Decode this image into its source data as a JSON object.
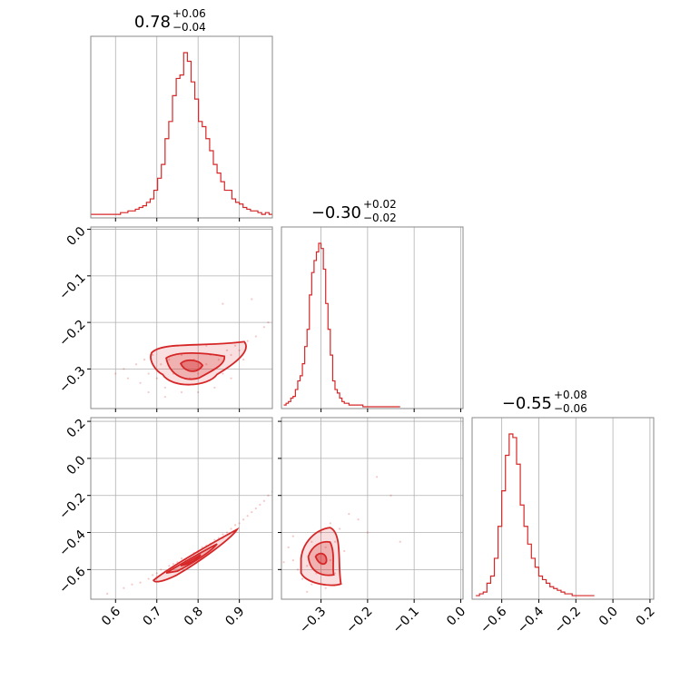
{
  "chart_data": {
    "type": "corner",
    "color": "#d62728",
    "grid": true,
    "parameters": [
      {
        "median": 0.78,
        "plus": 0.06,
        "minus": 0.04,
        "range": [
          0.54,
          0.98
        ],
        "ticks": [
          0.6,
          0.7,
          0.8,
          0.9
        ],
        "tick_labels": [
          "0.6",
          "0.7",
          "0.8",
          "0.9"
        ],
        "title_main": "0.78",
        "title_sup": "+0.06",
        "title_sub": "−0.04"
      },
      {
        "median": -0.3,
        "plus": 0.02,
        "minus": 0.02,
        "range": [
          -0.385,
          0.005
        ],
        "ticks": [
          -0.3,
          -0.2,
          -0.1,
          0.0
        ],
        "tick_labels": [
          "−0.3",
          "−0.2",
          "−0.1",
          "0.0"
        ],
        "title_main": "−0.30",
        "title_sup": "+0.02",
        "title_sub": "−0.02"
      },
      {
        "median": -0.55,
        "plus": 0.08,
        "minus": 0.06,
        "range": [
          -0.76,
          0.22
        ],
        "ticks": [
          -0.6,
          -0.4,
          -0.2,
          0.0,
          0.2
        ],
        "tick_labels": [
          "−0.6",
          "−0.4",
          "−0.2",
          "0.0",
          "0.2"
        ],
        "title_main": "−0.55",
        "title_sup": "+0.08",
        "title_sub": "−0.06"
      }
    ],
    "y_axis_ticks": {
      "row1": {
        "ticks": [
          0.0,
          -0.1,
          -0.2,
          -0.3
        ],
        "tick_labels": [
          "0.0",
          "−0.1",
          "−0.2",
          "−0.3"
        ]
      },
      "row2": {
        "ticks": [
          0.2,
          0.0,
          -0.2,
          -0.4,
          -0.6
        ],
        "tick_labels": [
          "0.2",
          "0.0",
          "−0.2",
          "−0.4",
          "−0.6"
        ]
      }
    },
    "histograms": [
      {
        "param": 0,
        "bins": [
          0.54,
          0.549,
          0.558,
          0.567,
          0.576,
          0.585,
          0.594,
          0.603,
          0.612,
          0.621,
          0.63,
          0.639,
          0.648,
          0.657,
          0.666,
          0.675,
          0.684,
          0.693,
          0.702,
          0.711,
          0.72,
          0.729,
          0.738,
          0.747,
          0.756,
          0.765,
          0.774,
          0.783,
          0.792,
          0.801,
          0.81,
          0.819,
          0.828,
          0.837,
          0.846,
          0.855,
          0.864,
          0.873,
          0.882,
          0.891,
          0.9,
          0.909,
          0.918,
          0.927,
          0.936,
          0.945,
          0.954,
          0.963,
          0.972,
          0.981
        ],
        "counts": [
          1,
          1,
          1,
          1,
          1,
          1,
          1,
          1,
          2,
          2,
          3,
          3,
          4,
          5,
          6,
          8,
          10,
          15,
          22,
          30,
          45,
          55,
          70,
          80,
          82,
          95,
          90,
          78,
          68,
          55,
          52,
          45,
          38,
          30,
          25,
          20,
          15,
          15,
          10,
          8,
          7,
          5,
          4,
          3,
          3,
          2,
          1,
          2,
          1
        ]
      },
      {
        "param": 1,
        "bins": [
          -0.38,
          -0.375,
          -0.37,
          -0.365,
          -0.36,
          -0.355,
          -0.35,
          -0.345,
          -0.34,
          -0.335,
          -0.33,
          -0.325,
          -0.32,
          -0.315,
          -0.31,
          -0.305,
          -0.3,
          -0.295,
          -0.29,
          -0.285,
          -0.28,
          -0.275,
          -0.27,
          -0.265,
          -0.26,
          -0.255,
          -0.25,
          -0.245,
          -0.24,
          -0.235,
          -0.23,
          -0.225,
          -0.22,
          -0.215,
          -0.21,
          -0.205,
          -0.2,
          -0.195,
          -0.19,
          -0.185,
          -0.18,
          -0.175,
          -0.17,
          -0.165,
          -0.16,
          -0.155,
          -0.15,
          -0.145,
          -0.14,
          -0.135,
          -0.13
        ],
        "counts": [
          1,
          2,
          3,
          5,
          6,
          10,
          15,
          18,
          25,
          35,
          45,
          65,
          78,
          85,
          90,
          95,
          92,
          80,
          60,
          45,
          30,
          15,
          10,
          8,
          5,
          3,
          2,
          2,
          1,
          1,
          1,
          1,
          1,
          1,
          0,
          0,
          0,
          0,
          0,
          0,
          0,
          0,
          0,
          0,
          0,
          0,
          0,
          0,
          0,
          0
        ]
      },
      {
        "param": 2,
        "bins": [
          -0.74,
          -0.72,
          -0.7,
          -0.68,
          -0.66,
          -0.64,
          -0.62,
          -0.6,
          -0.58,
          -0.56,
          -0.54,
          -0.52,
          -0.5,
          -0.48,
          -0.46,
          -0.44,
          -0.42,
          -0.4,
          -0.38,
          -0.36,
          -0.34,
          -0.32,
          -0.3,
          -0.28,
          -0.26,
          -0.24,
          -0.22,
          -0.2,
          -0.18,
          -0.16,
          -0.14,
          -0.12,
          -0.1
        ],
        "counts": [
          1,
          2,
          3,
          8,
          12,
          22,
          40,
          60,
          80,
          92,
          90,
          75,
          52,
          40,
          30,
          22,
          17,
          12,
          10,
          8,
          6,
          5,
          4,
          3,
          2,
          2,
          1,
          1,
          1,
          1,
          1,
          1
        ]
      }
    ],
    "scatter_panels": [
      {
        "x_param": 0,
        "y_param": 1,
        "center": [
          0.78,
          -0.3
        ],
        "points": [
          [
            0.62,
            -0.3
          ],
          [
            0.65,
            -0.29
          ],
          [
            0.66,
            -0.33
          ],
          [
            0.67,
            -0.28
          ],
          [
            0.68,
            -0.31
          ],
          [
            0.69,
            -0.27
          ],
          [
            0.7,
            -0.32
          ],
          [
            0.71,
            -0.29
          ],
          [
            0.72,
            -0.34
          ],
          [
            0.73,
            -0.28
          ],
          [
            0.74,
            -0.31
          ],
          [
            0.75,
            -0.33
          ],
          [
            0.76,
            -0.27
          ],
          [
            0.77,
            -0.3
          ],
          [
            0.78,
            -0.32
          ],
          [
            0.79,
            -0.28
          ],
          [
            0.8,
            -0.31
          ],
          [
            0.81,
            -0.33
          ],
          [
            0.82,
            -0.29
          ],
          [
            0.83,
            -0.27
          ],
          [
            0.84,
            -0.3
          ],
          [
            0.85,
            -0.28
          ],
          [
            0.86,
            -0.31
          ],
          [
            0.87,
            -0.26
          ],
          [
            0.88,
            -0.27
          ],
          [
            0.89,
            -0.25
          ],
          [
            0.9,
            -0.26
          ],
          [
            0.92,
            -0.24
          ],
          [
            0.94,
            -0.23
          ],
          [
            0.96,
            -0.21
          ],
          [
            0.97,
            -0.2
          ],
          [
            0.68,
            -0.35
          ],
          [
            0.72,
            -0.36
          ],
          [
            0.76,
            -0.35
          ],
          [
            0.8,
            -0.35
          ],
          [
            0.84,
            -0.34
          ],
          [
            0.63,
            -0.32
          ],
          [
            0.88,
            -0.32
          ],
          [
            0.91,
            -0.28
          ],
          [
            0.6,
            -0.31
          ],
          [
            0.75,
            -0.25
          ],
          [
            0.82,
            -0.25
          ],
          [
            0.93,
            -0.15
          ],
          [
            0.86,
            -0.16
          ]
        ]
      },
      {
        "x_param": 0,
        "y_param": 2,
        "center": [
          0.78,
          -0.55
        ],
        "points": [
          [
            0.58,
            -0.73
          ],
          [
            0.62,
            -0.7
          ],
          [
            0.64,
            -0.68
          ],
          [
            0.66,
            -0.67
          ],
          [
            0.68,
            -0.65
          ],
          [
            0.69,
            -0.63
          ],
          [
            0.7,
            -0.62
          ],
          [
            0.71,
            -0.6
          ],
          [
            0.72,
            -0.61
          ],
          [
            0.73,
            -0.58
          ],
          [
            0.74,
            -0.57
          ],
          [
            0.75,
            -0.56
          ],
          [
            0.76,
            -0.54
          ],
          [
            0.77,
            -0.55
          ],
          [
            0.78,
            -0.53
          ],
          [
            0.79,
            -0.51
          ],
          [
            0.8,
            -0.5
          ],
          [
            0.81,
            -0.48
          ],
          [
            0.82,
            -0.47
          ],
          [
            0.83,
            -0.46
          ],
          [
            0.84,
            -0.44
          ],
          [
            0.85,
            -0.43
          ],
          [
            0.86,
            -0.41
          ],
          [
            0.87,
            -0.4
          ],
          [
            0.88,
            -0.38
          ],
          [
            0.89,
            -0.36
          ],
          [
            0.9,
            -0.35
          ],
          [
            0.91,
            -0.33
          ],
          [
            0.92,
            -0.31
          ],
          [
            0.93,
            -0.29
          ],
          [
            0.94,
            -0.27
          ],
          [
            0.95,
            -0.25
          ],
          [
            0.96,
            -0.23
          ],
          [
            0.97,
            -0.2
          ],
          [
            0.98,
            -0.18
          ],
          [
            0.7,
            -0.64
          ],
          [
            0.74,
            -0.59
          ],
          [
            0.8,
            -0.52
          ],
          [
            0.86,
            -0.43
          ]
        ]
      },
      {
        "x_param": 1,
        "y_param": 2,
        "center": [
          -0.3,
          -0.55
        ],
        "points": [
          [
            -0.37,
            -0.48
          ],
          [
            -0.36,
            -0.55
          ],
          [
            -0.35,
            -0.6
          ],
          [
            -0.34,
            -0.5
          ],
          [
            -0.34,
            -0.65
          ],
          [
            -0.33,
            -0.58
          ],
          [
            -0.32,
            -0.45
          ],
          [
            -0.32,
            -0.68
          ],
          [
            -0.31,
            -0.52
          ],
          [
            -0.31,
            -0.62
          ],
          [
            -0.3,
            -0.4
          ],
          [
            -0.3,
            -0.57
          ],
          [
            -0.29,
            -0.48
          ],
          [
            -0.29,
            -0.7
          ],
          [
            -0.28,
            -0.55
          ],
          [
            -0.28,
            -0.35
          ],
          [
            -0.27,
            -0.45
          ],
          [
            -0.27,
            -0.62
          ],
          [
            -0.26,
            -0.38
          ],
          [
            -0.25,
            -0.5
          ],
          [
            -0.24,
            -0.3
          ],
          [
            -0.22,
            -0.33
          ],
          [
            -0.2,
            -0.4
          ],
          [
            -0.18,
            -0.1
          ],
          [
            -0.15,
            -0.2
          ],
          [
            -0.13,
            -0.45
          ],
          [
            -0.36,
            -0.42
          ],
          [
            -0.33,
            -0.72
          ],
          [
            -0.26,
            -0.68
          ],
          [
            -0.38,
            -0.56
          ]
        ]
      }
    ]
  }
}
